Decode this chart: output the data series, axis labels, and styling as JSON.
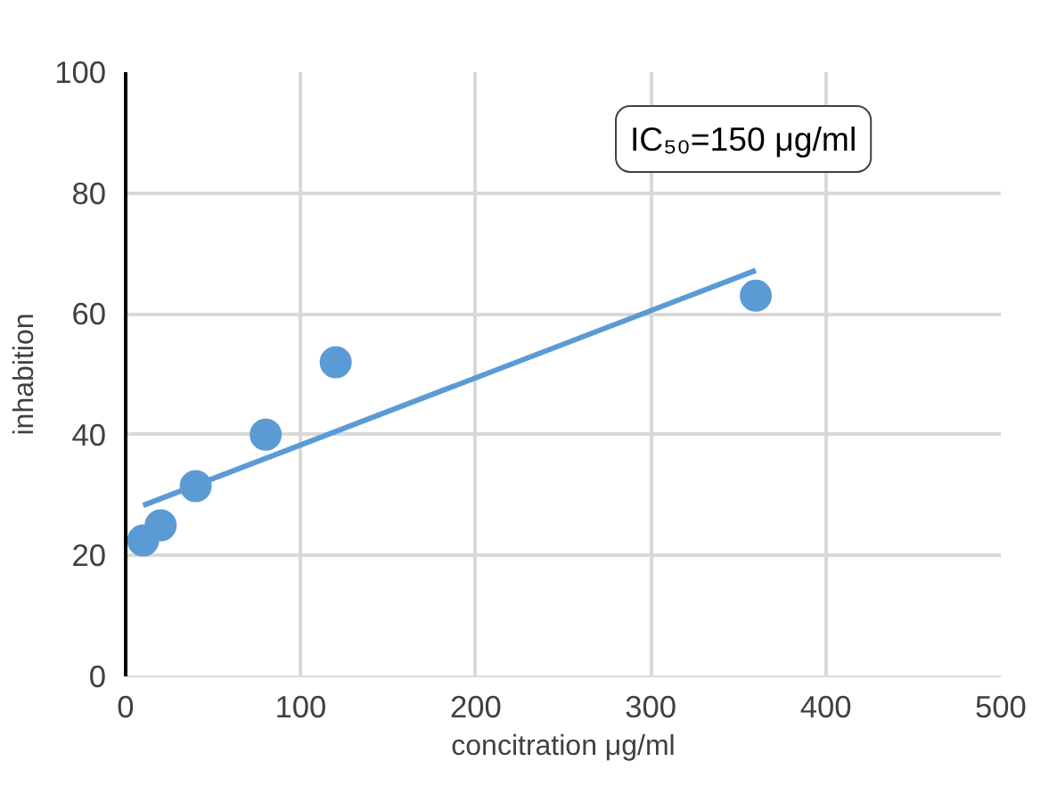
{
  "chart_data": {
    "type": "scatter",
    "xlabel": "concitration μg/ml",
    "ylabel": "inhabition",
    "annotations": [
      "IC₅₀=150 μg/ml"
    ],
    "xlim": [
      0,
      500
    ],
    "ylim": [
      0,
      100
    ],
    "xticks": [
      0,
      100,
      200,
      300,
      400,
      500
    ],
    "yticks": [
      0,
      20,
      40,
      60,
      80,
      100
    ],
    "grid": true,
    "series": [
      {
        "marker": "circle",
        "color": "#5b9bd5",
        "x": [
          10,
          20,
          40,
          80,
          120,
          360
        ],
        "values": [
          22.5,
          25,
          31.5,
          40,
          52,
          63
        ]
      },
      {
        "type": "line",
        "color": "#5b9bd5",
        "x": [
          10,
          360
        ],
        "values": [
          28.3,
          67.2
        ],
        "line_style": "solid"
      }
    ]
  }
}
